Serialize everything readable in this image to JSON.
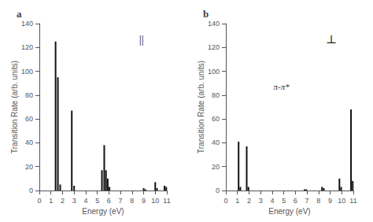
{
  "chart_data": [
    {
      "type": "bar",
      "title": "a",
      "annotations": [
        "||"
      ],
      "x": [
        1.4,
        1.6,
        1.8,
        2.8,
        3.0,
        5.4,
        5.6,
        5.75,
        5.9,
        6.05,
        9.0,
        9.15,
        10.0,
        10.15,
        10.8,
        10.95
      ],
      "values": [
        125,
        95,
        5,
        67,
        4,
        17,
        38,
        17,
        10,
        3,
        2,
        1,
        7,
        2,
        4,
        3
      ],
      "color": "#111111",
      "xlabel": "Energy (eV)",
      "ylabel": "Transition Rate (arb. units)",
      "xlim": [
        0,
        11
      ],
      "xticks": [
        0,
        1,
        2,
        3,
        4,
        5,
        6,
        7,
        8,
        9,
        10,
        11
      ],
      "ylim": [
        0,
        140
      ],
      "yticks": [
        0,
        20,
        40,
        60,
        80,
        100,
        120,
        140
      ],
      "grid": false
    },
    {
      "type": "bar",
      "title": "b",
      "annotations": [
        "⊥",
        {
          "text": "π-π*",
          "x": 4.8,
          "y": 80
        }
      ],
      "x": [
        1.1,
        1.25,
        1.8,
        1.95,
        6.8,
        6.95,
        8.3,
        8.45,
        9.8,
        9.95,
        10.8,
        10.95
      ],
      "values": [
        41,
        3,
        37,
        3,
        1,
        1,
        3,
        2,
        10,
        3,
        68,
        8
      ],
      "color": "#111111",
      "xlabel": "Energy (eV)",
      "ylabel": "Transition Rate (arb. units)",
      "xlim": [
        0,
        11
      ],
      "xticks": [
        0,
        1,
        2,
        3,
        4,
        5,
        6,
        7,
        8,
        9,
        10,
        11
      ],
      "ylim": [
        0,
        140
      ],
      "yticks": [
        0,
        20,
        40,
        60,
        80,
        100,
        120,
        140
      ],
      "grid": false
    }
  ]
}
